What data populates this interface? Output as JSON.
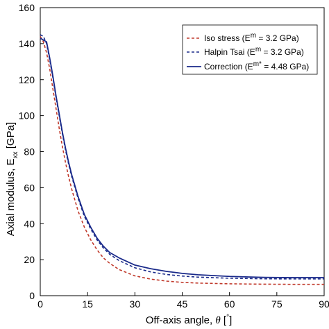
{
  "chart_data": {
    "type": "line",
    "xlabel_main": "Off-axis angle, ",
    "xlabel_symbol": "θ",
    "xlabel_unit_open": " [",
    "xlabel_unit_sup": "°",
    "xlabel_unit_close": "]",
    "ylabel_main": "Axial modulus, E",
    "ylabel_sub": "xx",
    "ylabel_unit": " [GPa]",
    "xlim": [
      0,
      90
    ],
    "ylim": [
      0,
      160
    ],
    "xticks": [
      0,
      15,
      30,
      45,
      60,
      75,
      90
    ],
    "yticks": [
      0,
      20,
      40,
      60,
      80,
      100,
      120,
      140,
      160
    ],
    "grid": false,
    "legend_position": "top-right",
    "series": [
      {
        "legend_pre": "Iso stress (E",
        "legend_sup": "m",
        "legend_post": " = 3.2 GPa)",
        "color": "#c0392b",
        "dash": "dashed",
        "x": [
          0,
          1,
          2,
          3,
          4,
          5,
          6,
          7,
          8,
          9,
          10,
          12,
          14,
          16,
          18,
          20,
          22,
          25,
          30,
          35,
          40,
          45,
          50,
          60,
          70,
          80,
          90
        ],
        "y": [
          144,
          141,
          135,
          126,
          115,
          104,
          93,
          83,
          74,
          66,
          59,
          47,
          38,
          31,
          25.5,
          21,
          18,
          14.5,
          11,
          9.2,
          8.1,
          7.4,
          7,
          6.6,
          6.4,
          6.3,
          6.3
        ]
      },
      {
        "legend_pre": "Halpin Tsai (E",
        "legend_sup": "m",
        "legend_post": " = 3.2 GPa)",
        "color": "#1a2a8a",
        "dash": "dashed",
        "x": [
          0,
          1,
          2,
          3,
          4,
          5,
          6,
          7,
          8,
          9,
          10,
          12,
          14,
          16,
          18,
          20,
          22,
          25,
          30,
          35,
          40,
          45,
          50,
          60,
          70,
          80,
          90
        ],
        "y": [
          145,
          144,
          140,
          131,
          121,
          110,
          100,
          90,
          81,
          73,
          66,
          54,
          44,
          37,
          31,
          26.5,
          23,
          19.5,
          15.5,
          13.2,
          11.8,
          10.9,
          10.3,
          9.7,
          9.4,
          9.3,
          9.3
        ]
      },
      {
        "legend_pre": "Correction (E",
        "legend_sup": "m*",
        "legend_post": " = 4.48 GPa)",
        "color": "#1a2a8a",
        "dash": "solid",
        "x": [
          0,
          1,
          2,
          3,
          4,
          5,
          6,
          7,
          8,
          9,
          10,
          12,
          14,
          16,
          18,
          20,
          22,
          25,
          30,
          35,
          40,
          45,
          50,
          60,
          70,
          80,
          90
        ],
        "y": [
          143,
          142,
          141,
          132,
          122,
          111,
          101,
          91,
          82,
          74,
          67,
          55,
          45,
          38,
          32,
          27.5,
          24,
          21,
          17,
          15,
          13.5,
          12.4,
          11.6,
          10.7,
          10.2,
          10,
          10
        ]
      }
    ]
  }
}
